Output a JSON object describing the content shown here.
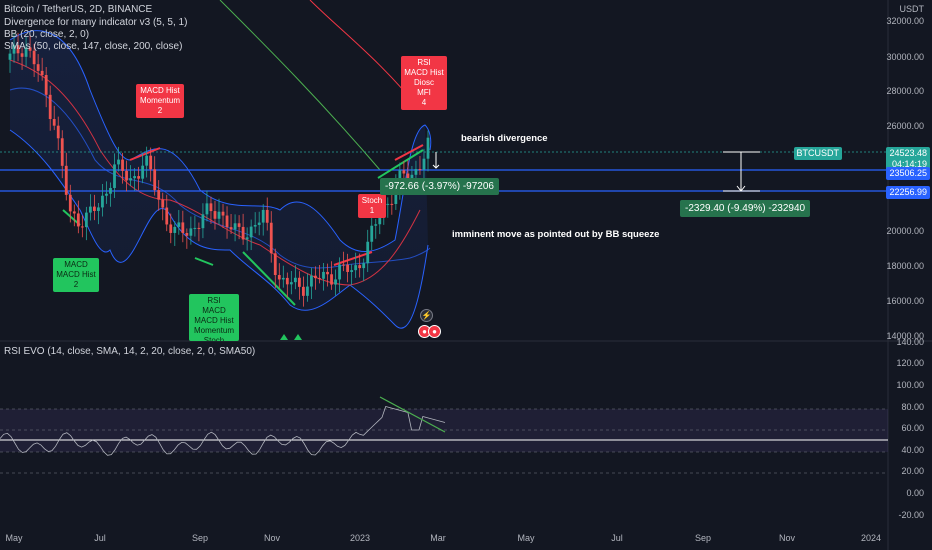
{
  "header": {
    "symbol": "Bitcoin / TetherUS, 2D, BINANCE",
    "indicator_1": "Divergence for many indicator v3 (5, 5, 1)",
    "indicator_2": "BB (20, close, 2, 0)",
    "indicator_3": "SMAs (50, close, 147, close, 200, close)",
    "pane2_title": "RSI EVO (14, close, SMA, 14, 2, 20, close, 2, 0, SMA50)"
  },
  "price_axis": {
    "currency": "USDT",
    "labels": [
      "32000.00",
      "30000.00",
      "28000.00",
      "26000.00",
      "24000.00",
      "22000.00",
      "20000.00",
      "18000.00",
      "16000.00",
      "14000.00"
    ],
    "last_symbol": "BTCUSDT",
    "last_price": "24523.48",
    "countdown": "04:14:19",
    "level_upper": "23506.25",
    "level_lower": "22256.99"
  },
  "rsi_axis": {
    "labels": [
      "140.00",
      "120.00",
      "100.00",
      "80.00",
      "60.00",
      "40.00",
      "20.00",
      "0.00",
      "-20.00"
    ]
  },
  "time_axis": {
    "labels": [
      "May",
      "Jul",
      "Sep",
      "Nov",
      "2023",
      "Mar",
      "May",
      "Jul",
      "Sep",
      "Nov",
      "2024"
    ]
  },
  "tags": {
    "macd_hist_bull": "MACD\nMACD Hist\n2",
    "macd_hist_momentum_bear": "MACD Hist\nMomentum\n2",
    "rsi_multi_bull": "RSI\nMACD\nMACD Hist\nMomentum\nStoch",
    "stoch_bear": "Stoch\n1",
    "rsi_multi_bear": "RSI\nMACD Hist\nDiosc\nMFI\n4"
  },
  "measures": {
    "small": "-972.66 (-3.97%) -97206",
    "large": "-2329.40 (-9.49%) -232940"
  },
  "annotations": {
    "bearish": "bearish divergence",
    "squeeze": "imminent move as pointed out by BB squeeze"
  },
  "colors": {
    "background": "#131722",
    "bullish": "#22c55e",
    "bearish": "#f23645",
    "level_line": "#2962ff",
    "bb_line": "#2962ff",
    "sma_green": "#4caf50",
    "sma_red": "#f23645",
    "rsi_line": "#b2b5be",
    "measure_green": "#26734d"
  },
  "chart_data": {
    "type": "candlestick",
    "x_range": [
      "2022-04",
      "2024-01"
    ],
    "ylim": [
      14000,
      32000
    ],
    "close": [
      29500,
      30500,
      28500,
      26000,
      20500,
      20500,
      21000,
      23500,
      22500,
      23800,
      21500,
      19500,
      19800,
      20500,
      21000,
      19500,
      19800,
      20500,
      17000,
      16500,
      16800,
      17000,
      17500,
      17300,
      19000,
      21000,
      22500,
      23000,
      24500
    ],
    "levels": [
      23506.25,
      22256.99
    ],
    "last_price": 24523.48
  }
}
